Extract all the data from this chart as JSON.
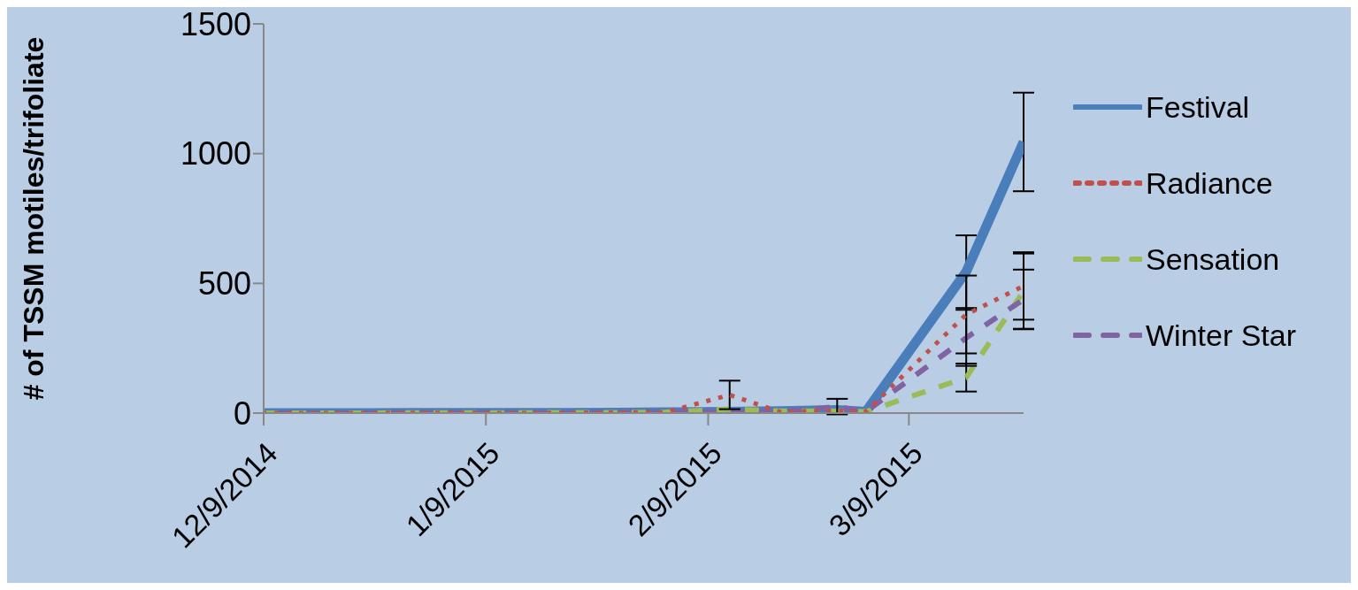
{
  "chart_data": {
    "type": "line",
    "ylabel": "# of TSSM motiles/trifoliate",
    "x": [
      "2014-12-09",
      "2014-12-16",
      "2014-12-23",
      "2014-12-30",
      "2015-01-06",
      "2015-01-13",
      "2015-01-20",
      "2015-01-27",
      "2015-02-03",
      "2015-02-12",
      "2015-02-19",
      "2015-02-27",
      "2015-03-03",
      "2015-03-17",
      "2015-03-25"
    ],
    "series": [
      {
        "name": "Festival",
        "color": "#4a7ebb",
        "line_style": "solid",
        "values": [
          0,
          0,
          0,
          1,
          1,
          1,
          1,
          2,
          3,
          5,
          8,
          12,
          5,
          545,
          1045
        ],
        "errors": [
          null,
          null,
          null,
          null,
          null,
          null,
          null,
          null,
          null,
          null,
          null,
          null,
          null,
          140,
          190
        ]
      },
      {
        "name": "Radiance",
        "color": "#c0504d",
        "line_style": "dotted",
        "values": [
          0,
          0,
          0,
          1,
          1,
          0,
          1,
          2,
          3,
          70,
          5,
          10,
          5,
          380,
          490
        ],
        "errors": [
          null,
          null,
          null,
          null,
          null,
          null,
          null,
          null,
          null,
          55,
          null,
          null,
          null,
          150,
          130
        ]
      },
      {
        "name": "Sensation",
        "color": "#9bbb59",
        "line_style": "dashed",
        "values": [
          0,
          0,
          0,
          1,
          1,
          1,
          2,
          2,
          3,
          15,
          8,
          8,
          5,
          137,
          470
        ],
        "errors": [
          null,
          null,
          null,
          null,
          null,
          null,
          null,
          null,
          null,
          null,
          null,
          null,
          null,
          54,
          145
        ]
      },
      {
        "name": "Winter Star",
        "color": "#8064a2",
        "line_style": "dashed",
        "values": [
          0,
          0,
          0,
          1,
          2,
          1,
          1,
          2,
          3,
          5,
          5,
          25,
          5,
          290,
          438
        ],
        "errors": [
          null,
          null,
          null,
          null,
          null,
          null,
          null,
          null,
          null,
          null,
          null,
          30,
          null,
          108,
          115
        ]
      }
    ],
    "xlim": [
      "2014-12-09",
      "2015-03-25"
    ],
    "xticks": [
      {
        "value": "2014-12-09",
        "label": "12/9/2014"
      },
      {
        "value": "2015-01-09",
        "label": "1/9/2015"
      },
      {
        "value": "2015-02-09",
        "label": "2/9/2015"
      },
      {
        "value": "2015-03-09",
        "label": "3/9/2015"
      }
    ],
    "ylim": [
      0,
      1500
    ],
    "yticks": [
      0,
      500,
      1000,
      1500
    ],
    "grid": false,
    "legend": "right",
    "marker": "none"
  }
}
